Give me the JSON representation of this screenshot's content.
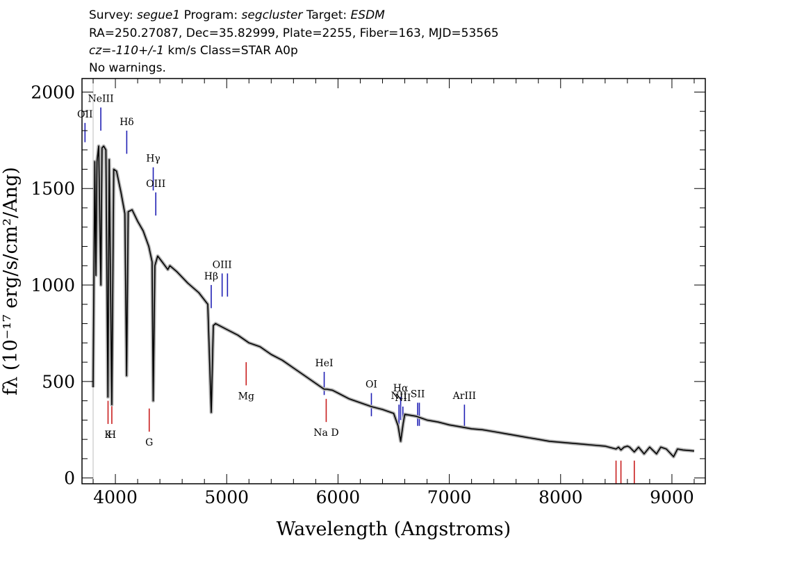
{
  "header": {
    "survey_key": "Survey:",
    "survey": "segue1",
    "program_key": "Program:",
    "program": "segcluster",
    "target_key": "Target:",
    "target": "ESDM",
    "line2": "RA=250.27087, Dec=35.82999, Plate=2255, Fiber=163, MJD=53565",
    "cz_key": "cz=",
    "cz_value": "-110+/-1",
    "cz_rest": " km/s Class=STAR A0p",
    "line4": "No warnings."
  },
  "chart_data": {
    "type": "line",
    "xlabel": "Wavelength (Angstroms)",
    "ylabel": "fλ (10⁻¹⁷ erg/s/cm²/Ang)",
    "xlim": [
      3700,
      9300
    ],
    "ylim": [
      -30,
      2070
    ],
    "x_ticks": [
      4000,
      5000,
      6000,
      7000,
      8000,
      9000
    ],
    "y_ticks": [
      0,
      500,
      1000,
      1500,
      2000
    ],
    "grid": false,
    "colors": {
      "spectrum": "#000000",
      "error": "#b0b0b0",
      "emission": "#1f1fb4",
      "absorption": "#c81e1e"
    },
    "series": [
      {
        "values": [
          [
            3800,
            470
          ],
          [
            3815,
            1640
          ],
          [
            3825,
            1050
          ],
          [
            3835,
            1640
          ],
          [
            3850,
            1720
          ],
          [
            3870,
            1000
          ],
          [
            3880,
            1710
          ],
          [
            3895,
            1720
          ],
          [
            3915,
            1700
          ],
          [
            3933,
            420
          ],
          [
            3945,
            1650
          ],
          [
            3968,
            380
          ],
          [
            3985,
            1600
          ],
          [
            4010,
            1590
          ],
          [
            4050,
            1480
          ],
          [
            4085,
            1370
          ],
          [
            4101,
            530
          ],
          [
            4115,
            1380
          ],
          [
            4150,
            1390
          ],
          [
            4200,
            1330
          ],
          [
            4250,
            1280
          ],
          [
            4300,
            1200
          ],
          [
            4330,
            1120
          ],
          [
            4340,
            400
          ],
          [
            4355,
            1100
          ],
          [
            4380,
            1150
          ],
          [
            4420,
            1120
          ],
          [
            4471,
            1080
          ],
          [
            4490,
            1100
          ],
          [
            4550,
            1070
          ],
          [
            4650,
            1010
          ],
          [
            4750,
            960
          ],
          [
            4830,
            900
          ],
          [
            4861,
            340
          ],
          [
            4880,
            790
          ],
          [
            4900,
            800
          ],
          [
            5000,
            770
          ],
          [
            5100,
            740
          ],
          [
            5200,
            700
          ],
          [
            5300,
            680
          ],
          [
            5400,
            640
          ],
          [
            5500,
            610
          ],
          [
            5600,
            570
          ],
          [
            5700,
            530
          ],
          [
            5800,
            490
          ],
          [
            5876,
            460
          ],
          [
            5900,
            460
          ],
          [
            5950,
            455
          ],
          [
            6000,
            440
          ],
          [
            6100,
            410
          ],
          [
            6200,
            390
          ],
          [
            6300,
            370
          ],
          [
            6400,
            355
          ],
          [
            6500,
            335
          ],
          [
            6540,
            270
          ],
          [
            6563,
            190
          ],
          [
            6585,
            280
          ],
          [
            6600,
            330
          ],
          [
            6700,
            320
          ],
          [
            6800,
            300
          ],
          [
            6900,
            290
          ],
          [
            7000,
            275
          ],
          [
            7100,
            265
          ],
          [
            7200,
            255
          ],
          [
            7300,
            250
          ],
          [
            7400,
            240
          ],
          [
            7500,
            230
          ],
          [
            7600,
            220
          ],
          [
            7700,
            210
          ],
          [
            7800,
            200
          ],
          [
            7900,
            190
          ],
          [
            8000,
            185
          ],
          [
            8100,
            180
          ],
          [
            8200,
            175
          ],
          [
            8300,
            170
          ],
          [
            8400,
            165
          ],
          [
            8498,
            150
          ],
          [
            8520,
            160
          ],
          [
            8542,
            145
          ],
          [
            8570,
            160
          ],
          [
            8600,
            165
          ],
          [
            8620,
            160
          ],
          [
            8662,
            135
          ],
          [
            8700,
            160
          ],
          [
            8750,
            125
          ],
          [
            8800,
            160
          ],
          [
            8862,
            125
          ],
          [
            8900,
            160
          ],
          [
            8950,
            150
          ],
          [
            9015,
            110
          ],
          [
            9050,
            150
          ],
          [
            9100,
            145
          ],
          [
            9200,
            140
          ]
        ]
      }
    ],
    "emission_lines": [
      {
        "label": "OII",
        "x": 3727,
        "ymin": 1740,
        "ymax": 1840
      },
      {
        "label": "NeIII",
        "x": 3869,
        "ymin": 1800,
        "ymax": 1920
      },
      {
        "label": "Hδ",
        "x": 4102,
        "ymin": 1680,
        "ymax": 1800
      },
      {
        "label": "Hγ",
        "x": 4340,
        "ymin": 1490,
        "ymax": 1610
      },
      {
        "label": "OIII",
        "x": 4363,
        "ymin": 1360,
        "ymax": 1480
      },
      {
        "label": "Hβ",
        "x": 4861,
        "ymin": 880,
        "ymax": 1000
      },
      {
        "label": "OIII",
        "x": 4959,
        "ymin": 940,
        "ymax": 1060
      },
      {
        "label": "",
        "x": 5007,
        "ymin": 940,
        "ymax": 1060
      },
      {
        "label": "HeI",
        "x": 5876,
        "ymin": 430,
        "ymax": 550
      },
      {
        "label": "OI",
        "x": 6300,
        "ymin": 320,
        "ymax": 440
      },
      {
        "label": "NII",
        "x": 6548,
        "ymin": 260,
        "ymax": 380
      },
      {
        "label": "Hα",
        "x": 6563,
        "ymin": 300,
        "ymax": 420
      },
      {
        "label": "NII",
        "x": 6583,
        "ymin": 260,
        "ymax": 370
      },
      {
        "label": "SII",
        "x": 6716,
        "ymin": 270,
        "ymax": 390
      },
      {
        "label": "",
        "x": 6731,
        "ymin": 270,
        "ymax": 390
      },
      {
        "label": "ArIII",
        "x": 7136,
        "ymin": 260,
        "ymax": 380
      }
    ],
    "absorption_lines": [
      {
        "label": "K",
        "x": 3934,
        "ymin": 280,
        "ymax": 400
      },
      {
        "label": "H",
        "x": 3968,
        "ymin": 280,
        "ymax": 400
      },
      {
        "label": "G",
        "x": 4304,
        "ymin": 240,
        "ymax": 360
      },
      {
        "label": "Mg",
        "x": 5175,
        "ymin": 480,
        "ymax": 600
      },
      {
        "label": "Na D",
        "x": 5894,
        "ymin": 290,
        "ymax": 410
      },
      {
        "label": "",
        "x": 8498,
        "ymin": -30,
        "ymax": 90
      },
      {
        "label": "",
        "x": 8542,
        "ymin": -30,
        "ymax": 90
      },
      {
        "label": "",
        "x": 8662,
        "ymin": -30,
        "ymax": 90
      }
    ]
  }
}
